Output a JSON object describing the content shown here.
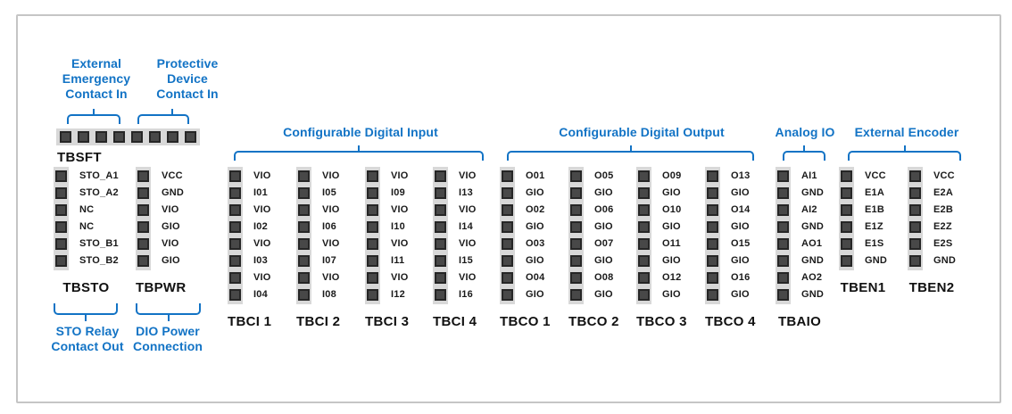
{
  "colors": {
    "accent_blue": "#1273C5",
    "pin_fill": "#484848",
    "strip_gray": "#D8D8D8"
  },
  "safety": {
    "block_name": "TBSFT",
    "pin_count": 8,
    "labels": [
      {
        "lines": [
          "External",
          "Emergency",
          "Contact In"
        ]
      },
      {
        "lines": [
          "Protective",
          "Device",
          "Contact In"
        ]
      }
    ]
  },
  "sto": {
    "name": "TBSTO",
    "pins": [
      "STO_A1",
      "STO_A2",
      "NC",
      "NC",
      "STO_B1",
      "STO_B2"
    ],
    "caption_lines": [
      "STO Relay",
      "Contact Out"
    ]
  },
  "pwr": {
    "name": "TBPWR",
    "pins": [
      "VCC",
      "GND",
      "VIO",
      "GIO",
      "VIO",
      "GIO"
    ],
    "caption_lines": [
      "DIO Power",
      "Connection"
    ]
  },
  "digital_input": {
    "header": "Configurable Digital Input",
    "blocks": [
      {
        "name": "TBCI 1",
        "pins": [
          "VIO",
          "I01",
          "VIO",
          "I02",
          "VIO",
          "I03",
          "VIO",
          "I04"
        ]
      },
      {
        "name": "TBCI 2",
        "pins": [
          "VIO",
          "I05",
          "VIO",
          "I06",
          "VIO",
          "I07",
          "VIO",
          "I08"
        ]
      },
      {
        "name": "TBCI 3",
        "pins": [
          "VIO",
          "I09",
          "VIO",
          "I10",
          "VIO",
          "I11",
          "VIO",
          "I12"
        ]
      },
      {
        "name": "TBCI 4",
        "pins": [
          "VIO",
          "I13",
          "VIO",
          "I14",
          "VIO",
          "I15",
          "VIO",
          "I16"
        ]
      }
    ]
  },
  "digital_output": {
    "header": "Configurable Digital Output",
    "blocks": [
      {
        "name": "TBCO 1",
        "pins": [
          "O01",
          "GIO",
          "O02",
          "GIO",
          "O03",
          "GIO",
          "O04",
          "GIO"
        ]
      },
      {
        "name": "TBCO 2",
        "pins": [
          "O05",
          "GIO",
          "O06",
          "GIO",
          "O07",
          "GIO",
          "O08",
          "GIO"
        ]
      },
      {
        "name": "TBCO 3",
        "pins": [
          "O09",
          "GIO",
          "O10",
          "GIO",
          "O11",
          "GIO",
          "O12",
          "GIO"
        ]
      },
      {
        "name": "TBCO 4",
        "pins": [
          "O13",
          "GIO",
          "O14",
          "GIO",
          "O15",
          "GIO",
          "O16",
          "GIO"
        ]
      }
    ]
  },
  "analog_io": {
    "header": "Analog IO",
    "blocks": [
      {
        "name": "TBAIO",
        "pins": [
          "AI1",
          "GND",
          "AI2",
          "GND",
          "AO1",
          "GND",
          "AO2",
          "GND"
        ]
      }
    ]
  },
  "encoder": {
    "header": "External Encoder",
    "blocks": [
      {
        "name": "TBEN1",
        "pins": [
          "VCC",
          "E1A",
          "E1B",
          "E1Z",
          "E1S",
          "GND"
        ]
      },
      {
        "name": "TBEN2",
        "pins": [
          "VCC",
          "E2A",
          "E2B",
          "E2Z",
          "E2S",
          "GND"
        ]
      }
    ]
  }
}
